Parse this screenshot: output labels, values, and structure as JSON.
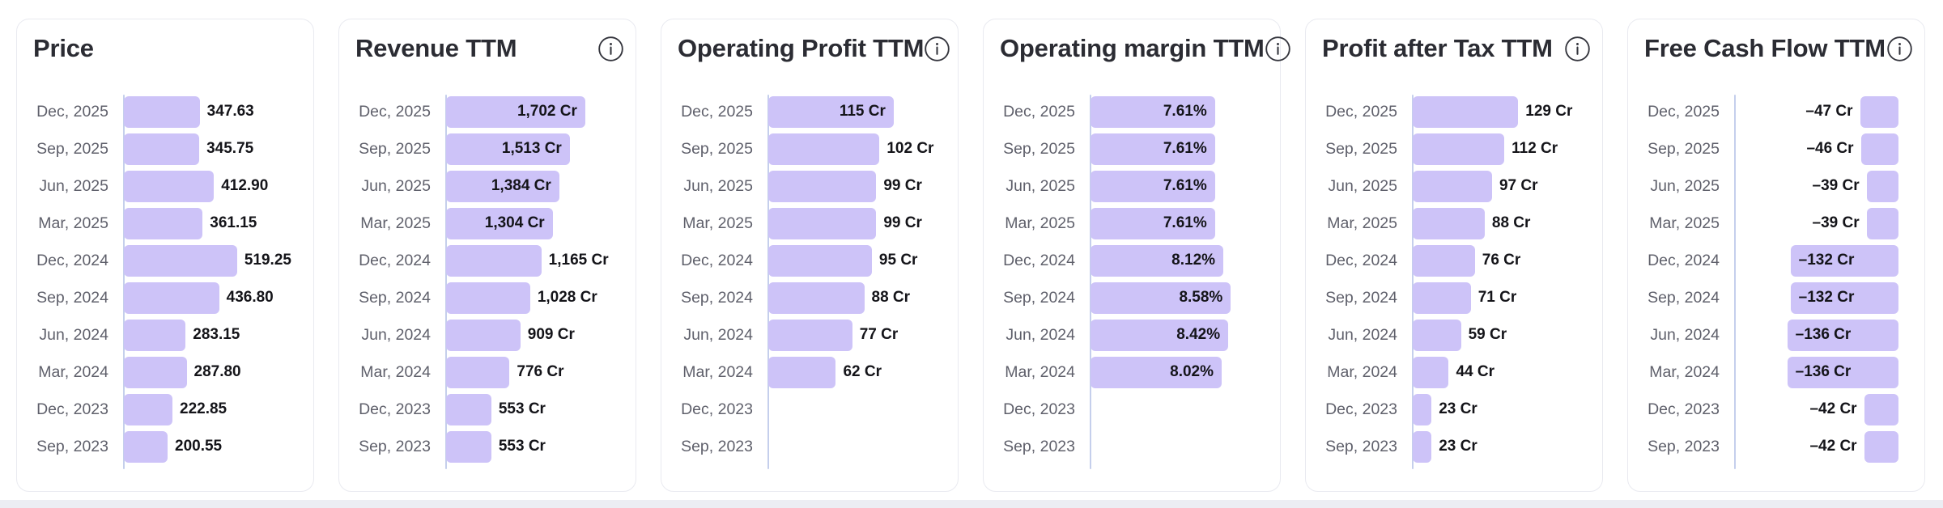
{
  "style": {
    "bar_color": "#cdc3f8",
    "axis_line_color": "#c5cfec",
    "title_color": "#2b2c33",
    "date_label_color": "#5f606b",
    "value_label_color": "#141419",
    "card_border_color": "#e9eaf0",
    "bottom_strip_color": "#ecedf3",
    "info_icon_color": "#33343c"
  },
  "chart_data": [
    {
      "type": "bar",
      "orientation": "horizontal",
      "title": "Price",
      "has_info_icon": false,
      "categories": [
        "Dec, 2025",
        "Sep, 2025",
        "Jun, 2025",
        "Mar, 2025",
        "Dec, 2024",
        "Sep, 2024",
        "Jun, 2024",
        "Mar, 2024",
        "Dec, 2023",
        "Sep, 2023"
      ],
      "values": [
        347.63,
        345.75,
        412.9,
        361.15,
        519.25,
        436.8,
        283.15,
        287.8,
        222.85,
        200.55
      ],
      "value_labels": [
        "347.63",
        "345.75",
        "412.90",
        "361.15",
        "519.25",
        "436.80",
        "283.15",
        "287.80",
        "222.85",
        "200.55"
      ],
      "xlim": [
        0,
        750
      ],
      "label_inside": [
        false,
        false,
        false,
        false,
        false,
        false,
        false,
        false,
        false,
        false
      ],
      "grid": false,
      "legend": false
    },
    {
      "type": "bar",
      "orientation": "horizontal",
      "title": "Revenue TTM",
      "has_info_icon": true,
      "categories": [
        "Dec, 2025",
        "Sep, 2025",
        "Jun, 2025",
        "Mar, 2025",
        "Dec, 2024",
        "Sep, 2024",
        "Jun, 2024",
        "Mar, 2024",
        "Dec, 2023",
        "Sep, 2023"
      ],
      "values": [
        1702,
        1513,
        1384,
        1304,
        1165,
        1028,
        909,
        776,
        553,
        553
      ],
      "value_labels": [
        "1,702 Cr",
        "1,513 Cr",
        "1,384 Cr",
        "1,304 Cr",
        "1,165 Cr",
        "1,028 Cr",
        "909 Cr",
        "776 Cr",
        "553 Cr",
        "553 Cr"
      ],
      "xlim": [
        0,
        2000
      ],
      "label_inside": [
        true,
        true,
        true,
        true,
        false,
        false,
        false,
        false,
        false,
        false
      ],
      "grid": false,
      "legend": false
    },
    {
      "type": "bar",
      "orientation": "horizontal",
      "title": "Operating Profit TTM",
      "has_info_icon": true,
      "categories": [
        "Dec, 2025",
        "Sep, 2025",
        "Jun, 2025",
        "Mar, 2025",
        "Dec, 2024",
        "Sep, 2024",
        "Jun, 2024",
        "Mar, 2024",
        "Dec, 2023",
        "Sep, 2023"
      ],
      "values": [
        115,
        102,
        99,
        99,
        95,
        88,
        77,
        62,
        null,
        null
      ],
      "value_labels": [
        "115 Cr",
        "102 Cr",
        "99 Cr",
        "99 Cr",
        "95 Cr",
        "88 Cr",
        "77 Cr",
        "62 Cr",
        null,
        null
      ],
      "xlim": [
        0,
        150
      ],
      "label_inside": [
        true,
        false,
        false,
        false,
        false,
        false,
        false,
        false,
        null,
        null
      ],
      "grid": false,
      "legend": false
    },
    {
      "type": "bar",
      "orientation": "horizontal",
      "title": "Operating margin TTM",
      "has_info_icon": true,
      "categories": [
        "Dec, 2025",
        "Sep, 2025",
        "Jun, 2025",
        "Mar, 2025",
        "Dec, 2024",
        "Sep, 2024",
        "Jun, 2024",
        "Mar, 2024",
        "Dec, 2023",
        "Sep, 2023"
      ],
      "values": [
        7.61,
        7.61,
        7.61,
        7.61,
        8.12,
        8.58,
        8.42,
        8.02,
        null,
        null
      ],
      "value_labels": [
        "7.61%",
        "7.61%",
        "7.61%",
        "7.61%",
        "8.12%",
        "8.58%",
        "8.42%",
        "8.02%",
        null,
        null
      ],
      "xlim": [
        0,
        10
      ],
      "label_inside": [
        true,
        true,
        true,
        true,
        true,
        true,
        true,
        true,
        null,
        null
      ],
      "grid": false,
      "legend": false
    },
    {
      "type": "bar",
      "orientation": "horizontal",
      "title": "Profit after Tax TTM",
      "has_info_icon": true,
      "categories": [
        "Dec, 2025",
        "Sep, 2025",
        "Jun, 2025",
        "Mar, 2025",
        "Dec, 2024",
        "Sep, 2024",
        "Jun, 2024",
        "Mar, 2024",
        "Dec, 2023",
        "Sep, 2023"
      ],
      "values": [
        129,
        112,
        97,
        88,
        76,
        71,
        59,
        44,
        23,
        23
      ],
      "value_labels": [
        "129 Cr",
        "112 Cr",
        "97 Cr",
        "88 Cr",
        "76 Cr",
        "71 Cr",
        "59 Cr",
        "44 Cr",
        "23 Cr",
        "23 Cr"
      ],
      "xlim": [
        0,
        200
      ],
      "label_inside": [
        false,
        false,
        false,
        false,
        false,
        false,
        false,
        false,
        false,
        false
      ],
      "grid": false,
      "legend": false
    },
    {
      "type": "bar",
      "orientation": "horizontal",
      "title": "Free Cash Flow TTM",
      "has_info_icon": true,
      "categories": [
        "Dec, 2025",
        "Sep, 2025",
        "Jun, 2025",
        "Mar, 2025",
        "Dec, 2024",
        "Sep, 2024",
        "Jun, 2024",
        "Mar, 2024",
        "Dec, 2023",
        "Sep, 2023"
      ],
      "values": [
        -47,
        -46,
        -39,
        -39,
        -132,
        -132,
        -136,
        -136,
        -42,
        -42
      ],
      "value_labels": [
        "–47 Cr",
        "–46 Cr",
        "–39 Cr",
        "–39 Cr",
        "–132 Cr",
        "–132 Cr",
        "–136 Cr",
        "–136 Cr",
        "–42 Cr",
        "–42 Cr"
      ],
      "xlim": [
        -200,
        0
      ],
      "label_inside": [
        false,
        false,
        false,
        false,
        true,
        true,
        true,
        true,
        false,
        false
      ],
      "grid": false,
      "legend": false
    }
  ]
}
